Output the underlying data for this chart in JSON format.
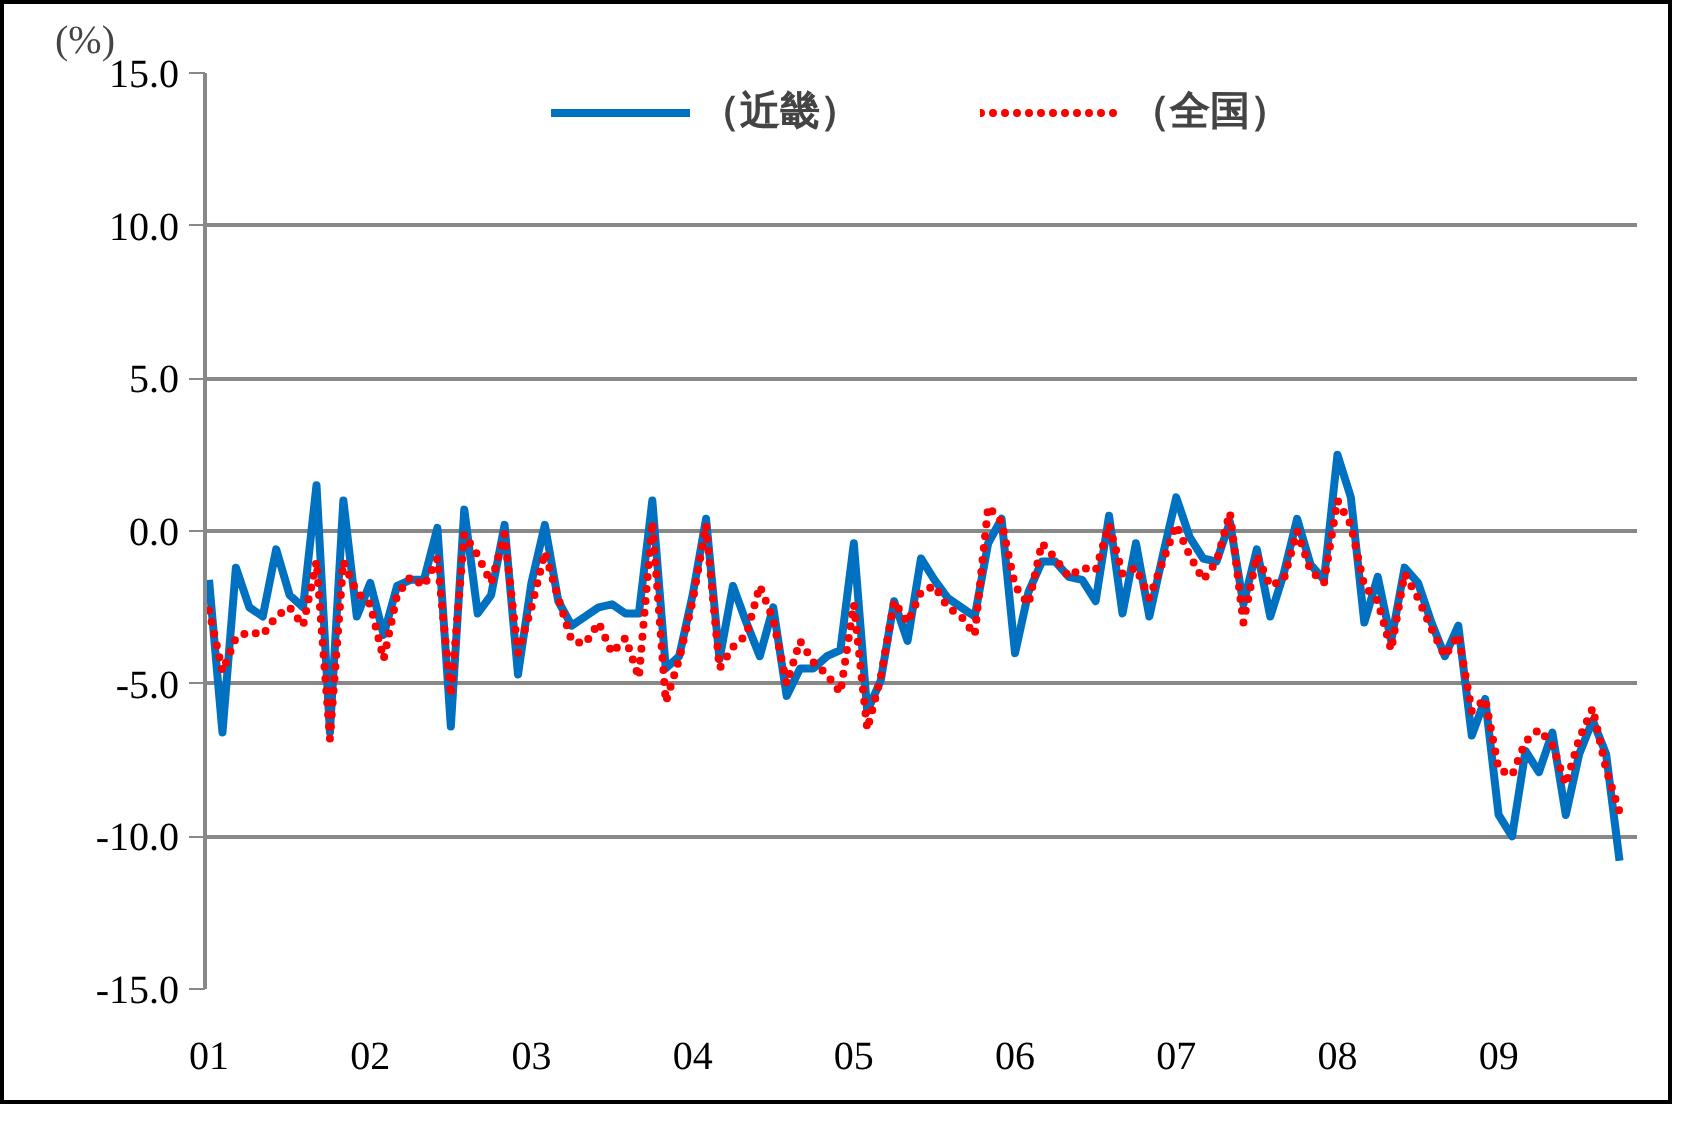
{
  "chart_data": {
    "type": "line",
    "ylabel": "(%)",
    "categories": [
      "01",
      null,
      null,
      null,
      null,
      null,
      null,
      null,
      null,
      null,
      null,
      null,
      "02",
      null,
      null,
      null,
      null,
      null,
      null,
      null,
      null,
      null,
      null,
      null,
      "03",
      null,
      null,
      null,
      null,
      null,
      null,
      null,
      null,
      null,
      null,
      null,
      "04",
      null,
      null,
      null,
      null,
      null,
      null,
      null,
      null,
      null,
      null,
      null,
      "05",
      null,
      null,
      null,
      null,
      null,
      null,
      null,
      null,
      null,
      null,
      null,
      "06",
      null,
      null,
      null,
      null,
      null,
      null,
      null,
      null,
      null,
      null,
      null,
      "07",
      null,
      null,
      null,
      null,
      null,
      null,
      null,
      null,
      null,
      null,
      null,
      "08",
      null,
      null,
      null,
      null,
      null,
      null,
      null,
      null,
      null,
      null,
      null,
      "09",
      null,
      null,
      null,
      null,
      null,
      null,
      null,
      null,
      null
    ],
    "series": [
      {
        "name": "（近畿）",
        "color": "#0070c0",
        "line_style": "solid",
        "values": [
          -1.6,
          -6.6,
          -1.2,
          -2.5,
          -2.8,
          -0.6,
          -2.1,
          -2.5,
          1.5,
          -6.6,
          1.0,
          -2.8,
          -1.7,
          -3.4,
          -1.8,
          -1.6,
          -1.6,
          0.1,
          -6.4,
          0.7,
          -2.7,
          -2.1,
          0.2,
          -4.7,
          -1.7,
          0.2,
          -2.3,
          -3.1,
          -2.8,
          -2.5,
          -2.4,
          -2.7,
          -2.7,
          1.0,
          -4.5,
          -4.1,
          -2.1,
          0.4,
          -4.2,
          -1.8,
          -3.0,
          -4.1,
          -2.5,
          -5.4,
          -4.5,
          -4.5,
          -4.1,
          -3.9,
          -0.4,
          -5.9,
          -4.9,
          -2.3,
          -3.6,
          -0.9,
          -1.6,
          -2.2,
          -2.5,
          -2.8,
          -0.4,
          0.4,
          -4.0,
          -2.0,
          -1.0,
          -1.0,
          -1.5,
          -1.6,
          -2.3,
          0.5,
          -2.7,
          -0.4,
          -2.8,
          -0.8,
          1.1,
          -0.2,
          -0.9,
          -1.0,
          0.3,
          -2.4,
          -0.6,
          -2.8,
          -1.4,
          0.4,
          -1.1,
          -1.6,
          2.5,
          1.1,
          -3.0,
          -1.5,
          -3.6,
          -1.2,
          -1.7,
          -3.0,
          -4.1,
          -3.1,
          -6.7,
          -5.5,
          -9.3,
          -10.0,
          -7.2,
          -7.9,
          -6.6,
          -9.3,
          -7.3,
          -6.2,
          -7.3,
          -10.8
        ]
      },
      {
        "name": "（全国）",
        "color": "#ff0000",
        "line_style": "dotted",
        "values": [
          -2.6,
          -4.6,
          -3.5,
          -3.3,
          -3.4,
          -2.8,
          -2.5,
          -3.1,
          -1.0,
          -6.8,
          -1.0,
          -2.0,
          -2.4,
          -4.2,
          -2.1,
          -1.5,
          -1.8,
          -0.9,
          -5.4,
          -0.1,
          -0.8,
          -1.7,
          -0.1,
          -4.0,
          -2.5,
          -0.7,
          -2.2,
          -3.6,
          -3.7,
          -3.0,
          -4.0,
          -3.5,
          -4.8,
          0.3,
          -5.6,
          -4.2,
          -2.3,
          0.2,
          -4.5,
          -3.8,
          -3.4,
          -1.8,
          -2.9,
          -5.0,
          -3.6,
          -4.3,
          -4.7,
          -5.3,
          -2.4,
          -6.5,
          -4.8,
          -2.3,
          -3.0,
          -2.0,
          -1.8,
          -2.5,
          -2.8,
          -3.4,
          0.8,
          0.3,
          -1.8,
          -2.4,
          -0.4,
          -0.9,
          -1.5,
          -1.2,
          -1.3,
          0.2,
          -1.4,
          -1.2,
          -2.2,
          -1.0,
          0.2,
          -0.8,
          -1.6,
          -1.0,
          0.6,
          -3.0,
          -0.8,
          -1.8,
          -1.6,
          0.0,
          -1.3,
          -1.7,
          1.0,
          0.2,
          -1.8,
          -2.3,
          -3.9,
          -1.4,
          -2.2,
          -3.2,
          -4.1,
          -3.4,
          -5.9,
          -5.5,
          -7.8,
          -8.0,
          -6.9,
          -6.5,
          -7.0,
          -8.3,
          -6.8,
          -5.8,
          -7.8,
          -9.2
        ]
      }
    ],
    "ylim": [
      -15,
      15
    ],
    "yticks": [
      {
        "value": 15,
        "label": "15.0"
      },
      {
        "value": 10,
        "label": "10.0"
      },
      {
        "value": 5,
        "label": "5.0"
      },
      {
        "value": 0,
        "label": "0.0"
      },
      {
        "value": -5,
        "label": "-5.0"
      },
      {
        "value": -10,
        "label": "-10.0"
      },
      {
        "value": -15,
        "label": "-15.0"
      }
    ],
    "grid": "y",
    "legend": "top",
    "marker": "none"
  }
}
